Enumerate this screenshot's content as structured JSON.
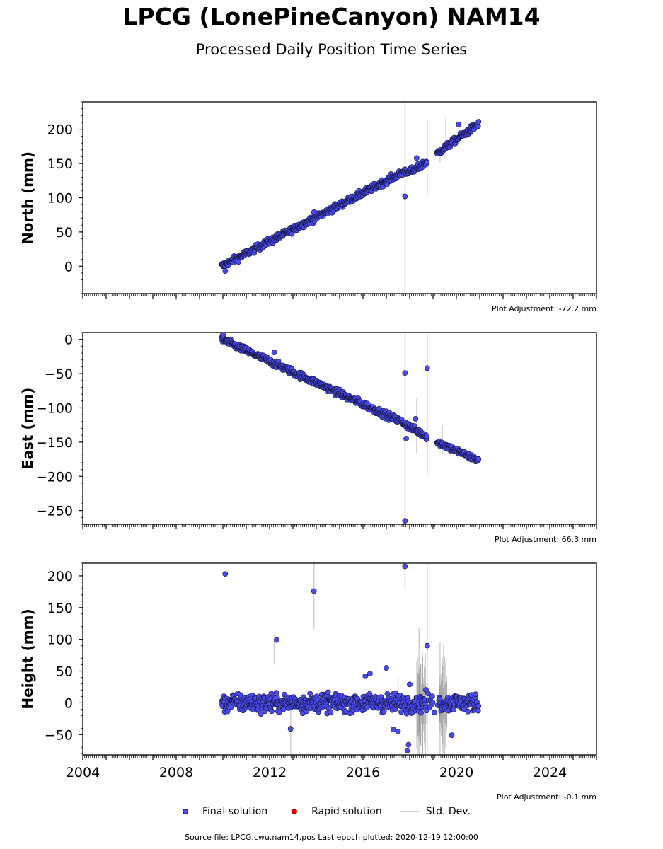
{
  "title": "LPCG (LonePineCanyon) NAM14",
  "subtitle": "Processed Daily Position Time Series",
  "colors": {
    "final": "#4a4af0",
    "final_edge": "#14143c",
    "rapid": "#e00000",
    "stddev": "#d0d0d0"
  },
  "legend": {
    "final": "Final solution",
    "rapid": "Rapid solution",
    "stddev": "Std. Dev."
  },
  "source": "Source file: LPCG.cwu.nam14.pos  Last epoch plotted: 2020-12-19 12:00:00",
  "chart_data": [
    {
      "type": "scatter",
      "ylabel": "North (mm)",
      "adjustment": "Plot Adjustment: -72.2 mm",
      "xlim": [
        2004,
        2026
      ],
      "ylim": [
        -40,
        240
      ],
      "yticks": [
        0,
        50,
        100,
        150,
        200
      ],
      "ytick_labels": [
        "0",
        "50",
        "100",
        "150",
        "200"
      ],
      "trend": [
        [
          2009.95,
          0
        ],
        [
          2017.75,
          138
        ],
        [
          2018.2,
          140
        ],
        [
          2019.1,
          162
        ],
        [
          2019.3,
          168
        ],
        [
          2020.95,
          208
        ]
      ],
      "noise": 3.5,
      "outliers": [
        [
          2010.1,
          -7
        ],
        [
          2013.9,
          79
        ],
        [
          2017.8,
          102
        ],
        [
          2018.3,
          158
        ],
        [
          2020.1,
          207
        ]
      ],
      "errorbars": [
        [
          2017.8,
          -40,
          240
        ],
        [
          2018.75,
          103,
          214
        ],
        [
          2019.55,
          157,
          217
        ],
        [
          2019.3,
          152,
          176
        ]
      ]
    },
    {
      "type": "scatter",
      "ylabel": "East (mm)",
      "adjustment": "Plot Adjustment: 66.3 mm",
      "xlim": [
        2004,
        2026
      ],
      "ylim": [
        -270,
        10
      ],
      "yticks": [
        0,
        -50,
        -100,
        -150,
        -200,
        -250
      ],
      "ytick_labels": [
        "0",
        "−50",
        "−100",
        "−150",
        "−200",
        "−250"
      ],
      "trend": [
        [
          2009.95,
          0
        ],
        [
          2017.75,
          -122
        ],
        [
          2018.1,
          -130
        ],
        [
          2019.2,
          -150
        ],
        [
          2020.95,
          -177
        ]
      ],
      "noise": 3.5,
      "outliers": [
        [
          2010.0,
          7
        ],
        [
          2012.2,
          -19
        ],
        [
          2017.8,
          -49
        ],
        [
          2017.8,
          -265
        ],
        [
          2018.75,
          -42
        ],
        [
          2018.25,
          -116
        ],
        [
          2017.85,
          -145
        ]
      ],
      "errorbars": [
        [
          2017.8,
          -270,
          10
        ],
        [
          2018.75,
          -197,
          10
        ],
        [
          2018.3,
          -166,
          -85
        ],
        [
          2019.4,
          -167,
          -126
        ]
      ]
    },
    {
      "type": "scatter",
      "ylabel": "Height (mm)",
      "adjustment": "Plot Adjustment: -0.1 mm",
      "xlim": [
        2004,
        2026
      ],
      "ylim": [
        -82,
        220
      ],
      "yticks": [
        -50,
        0,
        50,
        100,
        150,
        200
      ],
      "ytick_labels": [
        "−50",
        "0",
        "50",
        "100",
        "150",
        "200"
      ],
      "xticks": [
        2004,
        2008,
        2012,
        2016,
        2020,
        2024
      ],
      "xtick_labels": [
        "2004",
        "2008",
        "2012",
        "2016",
        "2020",
        "2024"
      ],
      "trend": [
        [
          2009.95,
          0
        ],
        [
          2020.95,
          0
        ]
      ],
      "noise": 10,
      "outliers": [
        [
          2010.1,
          203
        ],
        [
          2012.3,
          99
        ],
        [
          2013.9,
          176
        ],
        [
          2017.8,
          215
        ],
        [
          2018.75,
          90
        ],
        [
          2017.0,
          55
        ],
        [
          2016.1,
          42
        ],
        [
          2016.3,
          46
        ],
        [
          2012.9,
          -41
        ],
        [
          2019.8,
          -51
        ],
        [
          2017.9,
          -75
        ],
        [
          2017.95,
          -66
        ],
        [
          2017.5,
          -45
        ],
        [
          2018.0,
          29
        ],
        [
          2017.3,
          -42
        ]
      ],
      "errorbars": [
        [
          2013.9,
          116,
          220
        ],
        [
          2017.8,
          178,
          220
        ],
        [
          2018.75,
          -82,
          220
        ],
        [
          2012.2,
          60,
          108
        ],
        [
          2012.9,
          -82,
          0
        ],
        [
          2017.5,
          0,
          40
        ],
        [
          2018.4,
          -82,
          118
        ],
        [
          2018.55,
          -82,
          80
        ],
        [
          2019.3,
          -82,
          95
        ],
        [
          2019.45,
          -82,
          90
        ]
      ]
    }
  ]
}
